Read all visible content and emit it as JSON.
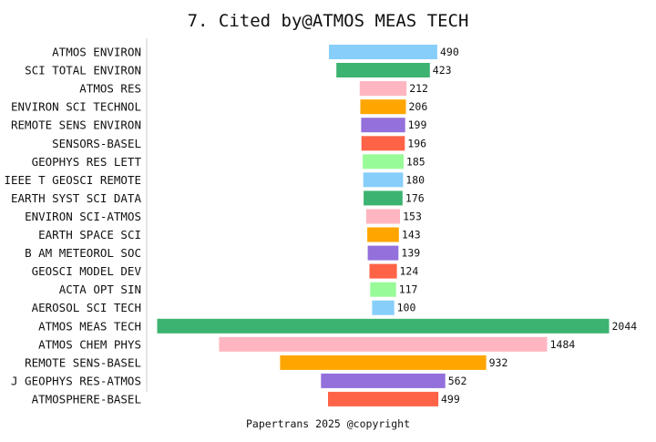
{
  "chart_data": {
    "type": "bar",
    "orientation": "horizontal-centered",
    "title": "7. Cited by@ATMOS MEAS TECH",
    "footer": "Papertrans 2025 @copyright",
    "categories": [
      "ATMOS ENVIRON",
      "SCI TOTAL ENVIRON",
      "ATMOS RES",
      "ENVIRON SCI TECHNOL",
      "REMOTE SENS ENVIRON",
      "SENSORS-BASEL",
      "GEOPHYS RES LETT",
      "IEEE T GEOSCI REMOTE",
      "EARTH SYST SCI DATA",
      "ENVIRON SCI-ATMOS",
      "EARTH SPACE SCI",
      "B AM METEOROL SOC",
      "GEOSCI MODEL DEV",
      "ACTA OPT SIN",
      "AEROSOL SCI TECH",
      "ATMOS MEAS TECH",
      "ATMOS CHEM PHYS",
      "REMOTE SENS-BASEL",
      "J GEOPHYS RES-ATMOS",
      "ATMOSPHERE-BASEL"
    ],
    "values": [
      490,
      423,
      212,
      206,
      199,
      196,
      185,
      180,
      176,
      153,
      143,
      139,
      124,
      117,
      100,
      2044,
      1484,
      932,
      562,
      499
    ],
    "colors": [
      "#87CEFA",
      "#3CB371",
      "#FFB6C1",
      "#FFA500",
      "#9370DB",
      "#FF6347",
      "#98FB98",
      "#87CEFA",
      "#3CB371",
      "#FFB6C1",
      "#FFA500",
      "#9370DB",
      "#FF6347",
      "#98FB98",
      "#87CEFA",
      "#3CB371",
      "#FFB6C1",
      "#FFA500",
      "#9370DB",
      "#FF6347"
    ],
    "xlim": [
      0,
      2044
    ]
  }
}
